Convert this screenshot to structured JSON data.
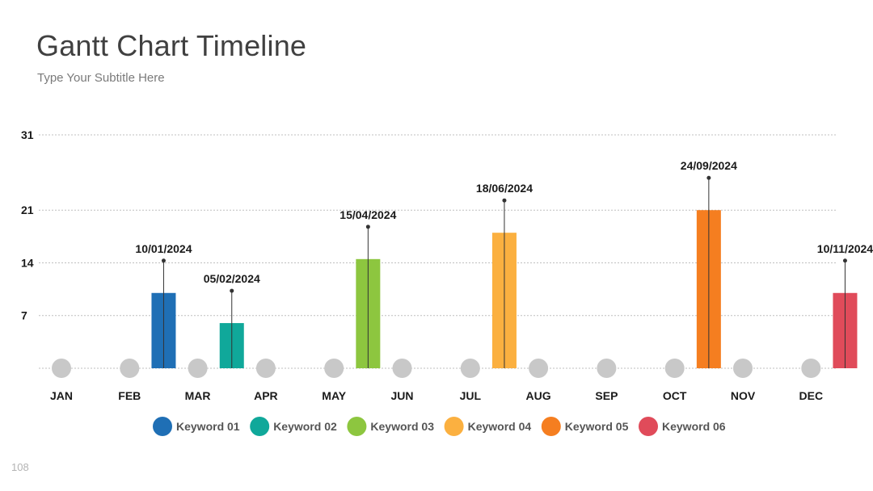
{
  "slide": {
    "title": "Gantt Chart Timeline",
    "subtitle": "Type Your Subtitle Here",
    "page_number": "108"
  },
  "chart_data": {
    "type": "bar",
    "title": "",
    "xlabel": "",
    "ylabel": "",
    "ylim": [
      0,
      31
    ],
    "yticks": [
      7,
      14,
      21,
      31
    ],
    "grid": true,
    "legend_position": "bottom",
    "x_timeline_labels": [
      "JAN",
      "FEB",
      "MAR",
      "APR",
      "MAY",
      "JUN",
      "JUL",
      "AUG",
      "SEP",
      "OCT",
      "NOV",
      "DEC"
    ],
    "series": [
      {
        "name": "Keyword 01",
        "date_label": "10/01/2024",
        "x": 1.5,
        "value": 10,
        "color": "#1f6fb5"
      },
      {
        "name": "Keyword 02",
        "date_label": "05/02/2024",
        "x": 2.5,
        "value": 6,
        "color": "#10a89a"
      },
      {
        "name": "Keyword 03",
        "date_label": "15/04/2024",
        "x": 4.5,
        "value": 14.5,
        "color": "#8dc63f"
      },
      {
        "name": "Keyword 04",
        "date_label": "18/06/2024",
        "x": 6.5,
        "value": 18,
        "color": "#fbb040"
      },
      {
        "name": "Keyword 05",
        "date_label": "24/09/2024",
        "x": 9.5,
        "value": 21,
        "color": "#f57e20"
      },
      {
        "name": "Keyword 06",
        "date_label": "10/11/2024",
        "x": 11.5,
        "value": 10,
        "color": "#e04b5a"
      }
    ]
  }
}
